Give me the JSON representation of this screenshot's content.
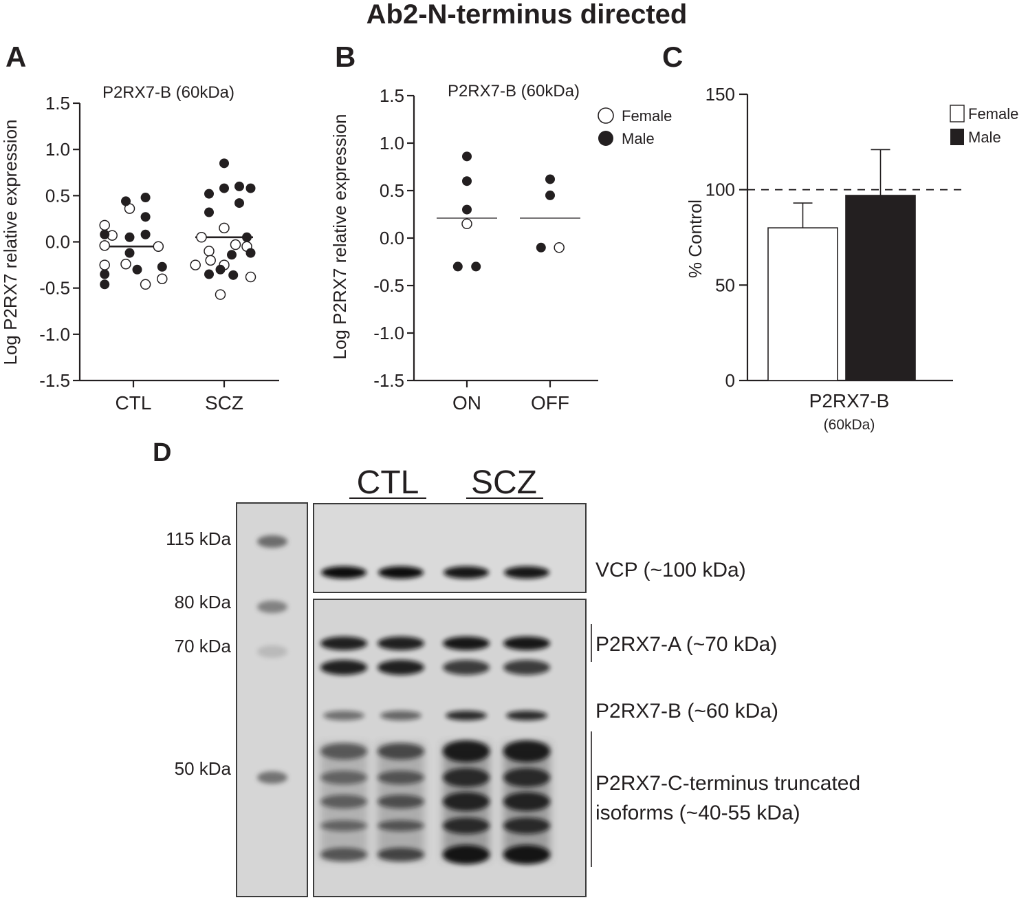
{
  "figure_title": "Ab2-N-terminus directed",
  "panel_letters": [
    "A",
    "B",
    "C",
    "D"
  ],
  "legend_b": {
    "female": "Female",
    "male": "Male"
  },
  "legend_c": {
    "female": "Female",
    "male": "Male"
  },
  "colors": {
    "ink": "#231f20",
    "female_fill": "#ffffff",
    "male_fill": "#231f20"
  },
  "chart_data": [
    {
      "panel": "A",
      "type": "scatter",
      "title": "P2RX7-B (60kDa)",
      "xlabel": "",
      "ylabel": "Log P2RX7 relative expression",
      "ylim": [
        -1.5,
        1.5
      ],
      "yticks": [
        "1.5",
        "1.0",
        "0.5",
        "0.0",
        "-0.5",
        "-1.0",
        "-1.5"
      ],
      "categories": [
        "CTL",
        "SCZ"
      ],
      "median": [
        -0.05,
        0.05
      ],
      "series": [
        {
          "name": "Female",
          "points": [
            {
              "cat": "CTL",
              "dx": -0.38,
              "y": 0.18
            },
            {
              "cat": "CTL",
              "dx": -0.05,
              "y": 0.36
            },
            {
              "cat": "CTL",
              "dx": -0.28,
              "y": 0.07
            },
            {
              "cat": "CTL",
              "dx": -0.38,
              "y": -0.04
            },
            {
              "cat": "CTL",
              "dx": 0.33,
              "y": -0.05
            },
            {
              "cat": "CTL",
              "dx": -0.38,
              "y": -0.25
            },
            {
              "cat": "CTL",
              "dx": -0.1,
              "y": -0.24
            },
            {
              "cat": "CTL",
              "dx": 0.16,
              "y": -0.46
            },
            {
              "cat": "CTL",
              "dx": 0.38,
              "y": -0.4
            },
            {
              "cat": "SCZ",
              "dx": -0.3,
              "y": 0.05
            },
            {
              "cat": "SCZ",
              "dx": 0.0,
              "y": 0.15
            },
            {
              "cat": "SCZ",
              "dx": -0.2,
              "y": -0.1
            },
            {
              "cat": "SCZ",
              "dx": 0.15,
              "y": -0.03
            },
            {
              "cat": "SCZ",
              "dx": -0.38,
              "y": -0.25
            },
            {
              "cat": "SCZ",
              "dx": -0.18,
              "y": -0.2
            },
            {
              "cat": "SCZ",
              "dx": 0.0,
              "y": -0.25
            },
            {
              "cat": "SCZ",
              "dx": 0.3,
              "y": -0.05
            },
            {
              "cat": "SCZ",
              "dx": 0.35,
              "y": -0.38
            },
            {
              "cat": "SCZ",
              "dx": -0.05,
              "y": -0.57
            }
          ]
        },
        {
          "name": "Male",
          "points": [
            {
              "cat": "CTL",
              "dx": -0.1,
              "y": 0.44
            },
            {
              "cat": "CTL",
              "dx": 0.16,
              "y": 0.48
            },
            {
              "cat": "CTL",
              "dx": 0.16,
              "y": 0.27
            },
            {
              "cat": "CTL",
              "dx": -0.38,
              "y": 0.08
            },
            {
              "cat": "CTL",
              "dx": -0.05,
              "y": 0.05
            },
            {
              "cat": "CTL",
              "dx": 0.16,
              "y": 0.08
            },
            {
              "cat": "CTL",
              "dx": -0.05,
              "y": -0.12
            },
            {
              "cat": "CTL",
              "dx": -0.38,
              "y": -0.35
            },
            {
              "cat": "CTL",
              "dx": -0.38,
              "y": -0.46
            },
            {
              "cat": "CTL",
              "dx": 0.05,
              "y": -0.3
            },
            {
              "cat": "CTL",
              "dx": 0.38,
              "y": -0.27
            },
            {
              "cat": "SCZ",
              "dx": 0.0,
              "y": 0.85
            },
            {
              "cat": "SCZ",
              "dx": -0.2,
              "y": 0.52
            },
            {
              "cat": "SCZ",
              "dx": 0.0,
              "y": 0.58
            },
            {
              "cat": "SCZ",
              "dx": 0.2,
              "y": 0.6
            },
            {
              "cat": "SCZ",
              "dx": 0.35,
              "y": 0.58
            },
            {
              "cat": "SCZ",
              "dx": -0.2,
              "y": 0.32
            },
            {
              "cat": "SCZ",
              "dx": 0.2,
              "y": 0.42
            },
            {
              "cat": "SCZ",
              "dx": 0.3,
              "y": 0.05
            },
            {
              "cat": "SCZ",
              "dx": 0.35,
              "y": -0.12
            },
            {
              "cat": "SCZ",
              "dx": 0.1,
              "y": -0.14
            },
            {
              "cat": "SCZ",
              "dx": -0.2,
              "y": -0.35
            },
            {
              "cat": "SCZ",
              "dx": -0.05,
              "y": -0.3
            },
            {
              "cat": "SCZ",
              "dx": 0.12,
              "y": -0.36
            }
          ]
        }
      ]
    },
    {
      "panel": "B",
      "type": "scatter",
      "title": "P2RX7-B (60kDa)",
      "xlabel": "",
      "ylabel": "Log P2RX7 relative expression",
      "ylim": [
        -1.5,
        1.5
      ],
      "yticks": [
        "1.5",
        "1.0",
        "0.5",
        "0.0",
        "-0.5",
        "-1.0",
        "-1.5"
      ],
      "categories": [
        "ON",
        "OFF"
      ],
      "median": [
        0.21,
        0.21
      ],
      "series": [
        {
          "name": "Female",
          "points": [
            {
              "cat": "ON",
              "dx": 0.0,
              "y": 0.15
            },
            {
              "cat": "OFF",
              "dx": 0.12,
              "y": -0.1
            }
          ]
        },
        {
          "name": "Male",
          "points": [
            {
              "cat": "ON",
              "dx": 0.0,
              "y": 0.86
            },
            {
              "cat": "ON",
              "dx": 0.0,
              "y": 0.6
            },
            {
              "cat": "ON",
              "dx": 0.0,
              "y": 0.3
            },
            {
              "cat": "ON",
              "dx": -0.12,
              "y": -0.3
            },
            {
              "cat": "ON",
              "dx": 0.12,
              "y": -0.3
            },
            {
              "cat": "OFF",
              "dx": 0.0,
              "y": 0.62
            },
            {
              "cat": "OFF",
              "dx": 0.0,
              "y": 0.45
            },
            {
              "cat": "OFF",
              "dx": -0.12,
              "y": -0.1
            }
          ]
        }
      ]
    },
    {
      "panel": "C",
      "type": "bar",
      "xlabel": "P2RX7-B",
      "xlabel_sub": "(60kDa)",
      "ylabel": "% Control",
      "ylim": [
        0,
        150
      ],
      "yticks": [
        "150",
        "100",
        "50",
        "0"
      ],
      "reference_line": 100,
      "categories": [
        "Female",
        "Male"
      ],
      "values": [
        80,
        97
      ],
      "error": [
        13,
        24
      ]
    },
    {
      "panel": "D",
      "type": "western_blot",
      "groups": [
        "CTL",
        "SCZ"
      ],
      "ladder": [
        "115 kDa",
        "80 kDa",
        "70 kDa",
        "50 kDa"
      ],
      "bands": [
        "VCP (~100 kDa)",
        "P2RX7-A (~70 kDa)",
        "P2RX7-B (~60 kDa)",
        "P2RX7-C-terminus truncated",
        "isoforms (~40-55 kDa)"
      ],
      "lane_intensity": {
        "vcp": [
          1.0,
          1.0,
          0.95,
          0.95
        ],
        "p2rx7_a": [
          0.9,
          0.9,
          0.95,
          0.95
        ],
        "p2rx7_b": [
          0.5,
          0.55,
          0.85,
          0.85
        ],
        "truncated": [
          0.6,
          0.7,
          1.0,
          1.0
        ]
      }
    }
  ]
}
